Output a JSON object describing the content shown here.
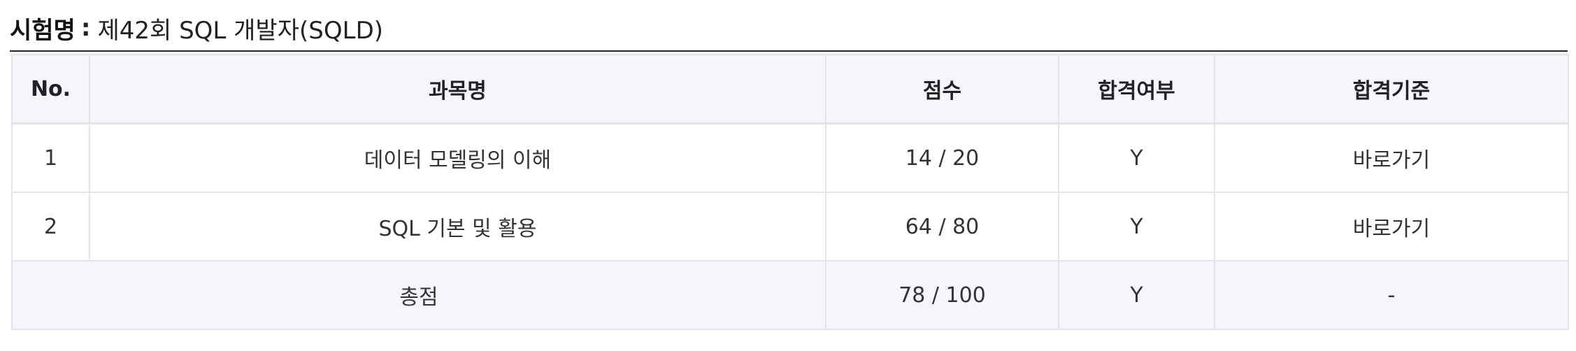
{
  "exam": {
    "label": "시험명",
    "separator": ":",
    "name": "제42회 SQL 개발자(SQLD)"
  },
  "table": {
    "headers": {
      "no": "No.",
      "subject": "과목명",
      "score": "점수",
      "pass": "합격여부",
      "criteria": "합격기준"
    },
    "rows": [
      {
        "no": "1",
        "subject": "데이터 모델링의 이해",
        "score": "14 / 20",
        "pass": "Y",
        "criteria": "바로가기"
      },
      {
        "no": "2",
        "subject": "SQL 기본 및 활용",
        "score": "64 / 80",
        "pass": "Y",
        "criteria": "바로가기"
      }
    ],
    "total": {
      "label": "총점",
      "score": "78 / 100",
      "pass": "Y",
      "criteria": "-"
    }
  },
  "colors": {
    "header_bg": "#f4f6fb",
    "border": "#e1e4ea",
    "top_rule": "#222222"
  }
}
